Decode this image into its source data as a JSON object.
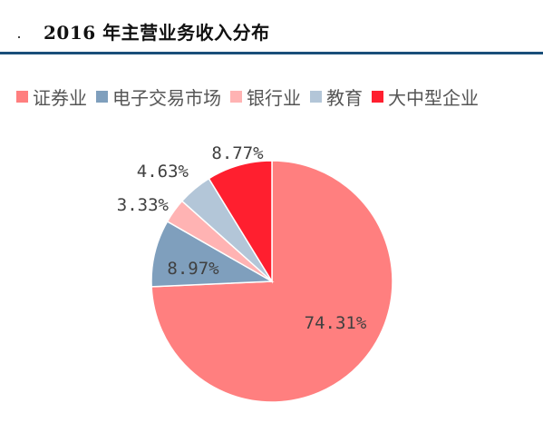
{
  "title": "2016 年主营业务收入分布",
  "chart_data": {
    "type": "pie",
    "title": "2016 年主营业务收入分布",
    "legend_position": "top",
    "start_angle_deg": 90,
    "direction": "clockwise",
    "slices": [
      {
        "label": "证券业",
        "value": 74.31,
        "display": "74.31%",
        "color": "#ff7f7f"
      },
      {
        "label": "电子交易市场",
        "value": 8.97,
        "display": "8.97%",
        "color": "#7f9fbd"
      },
      {
        "label": "银行业",
        "value": 3.33,
        "display": "3.33%",
        "color": "#ffb3b3"
      },
      {
        "label": "教育",
        "value": 4.63,
        "display": "4.63%",
        "color": "#b3c6d8"
      },
      {
        "label": "大中型企业",
        "value": 8.77,
        "display": "8.77%",
        "color": "#ff1f2f"
      }
    ]
  }
}
